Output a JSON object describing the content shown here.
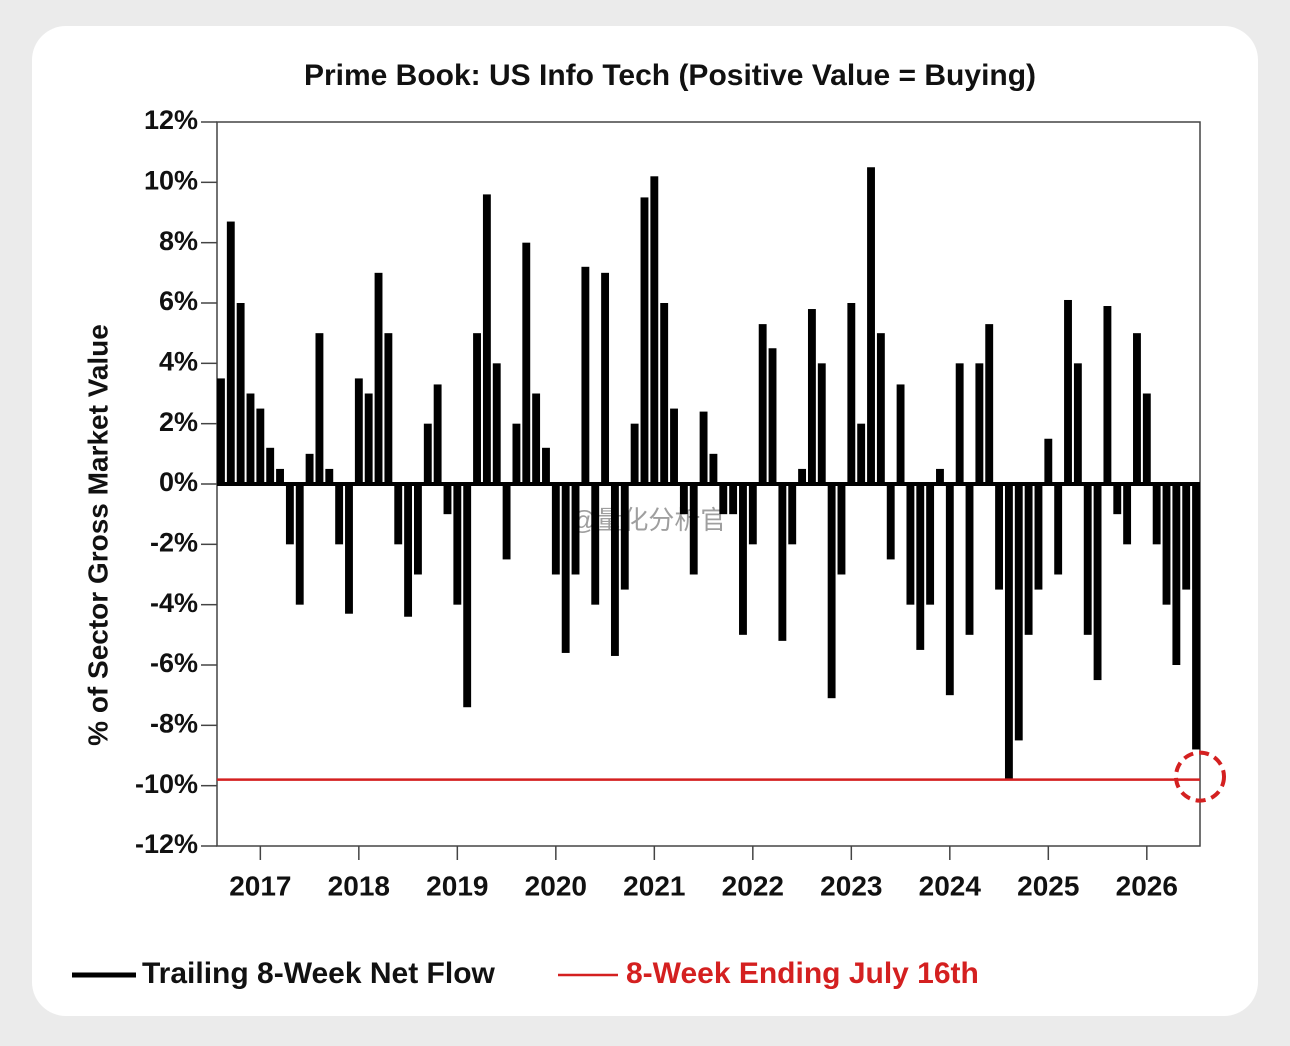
{
  "chart_data": {
    "type": "bar",
    "title": "Prime Book: US Info Tech (Positive Value = Buying)",
    "y_label": "% of Sector Gross Market Value",
    "watermark": "@量化分析官",
    "x": [
      2016.6,
      2016.7,
      2016.8,
      2016.9,
      2017.0,
      2017.1,
      2017.2,
      2017.3,
      2017.4,
      2017.5,
      2017.6,
      2017.7,
      2017.8,
      2017.9,
      2018.0,
      2018.1,
      2018.2,
      2018.3,
      2018.4,
      2018.5,
      2018.6,
      2018.7,
      2018.8,
      2018.9,
      2019.0,
      2019.1,
      2019.2,
      2019.3,
      2019.4,
      2019.5,
      2019.6,
      2019.7,
      2019.8,
      2019.9,
      2020.0,
      2020.1,
      2020.2,
      2020.3,
      2020.4,
      2020.5,
      2020.6,
      2020.7,
      2020.8,
      2020.9,
      2021.0,
      2021.1,
      2021.2,
      2021.3,
      2021.4,
      2021.5,
      2021.6,
      2021.7,
      2021.8,
      2021.9,
      2022.0,
      2022.1,
      2022.2,
      2022.3,
      2022.4,
      2022.5,
      2022.6,
      2022.7,
      2022.8,
      2022.9,
      2023.0,
      2023.1,
      2023.2,
      2023.3,
      2023.4,
      2023.5,
      2023.6,
      2023.7,
      2023.8,
      2023.9,
      2024.0,
      2024.1,
      2024.2,
      2024.3,
      2024.4,
      2024.5,
      2024.6,
      2024.7,
      2024.8,
      2024.9,
      2025.0,
      2025.1,
      2025.2,
      2025.3,
      2025.4,
      2025.5,
      2025.6,
      2025.7,
      2025.8,
      2025.9,
      2026.0,
      2026.1,
      2026.2,
      2026.3,
      2026.4,
      2026.5
    ],
    "series": [
      {
        "name": "Trailing 8-Week Net Flow",
        "color": "#000000",
        "values": [
          3.5,
          8.7,
          6,
          3,
          2.5,
          1.2,
          0.5,
          -2,
          -4,
          1,
          5,
          0.5,
          -2,
          -4.3,
          3.5,
          3,
          7,
          5,
          -2,
          -4.4,
          -3,
          2,
          3.3,
          -1,
          -4,
          -7.4,
          5,
          9.6,
          4,
          -2.5,
          2,
          8,
          3,
          1.2,
          -3,
          -5.6,
          -3,
          7.2,
          -4,
          7,
          -5.7,
          -3.5,
          2,
          9.5,
          10.2,
          6,
          2.5,
          -1,
          -3,
          2.4,
          1,
          -1,
          -1,
          -5,
          -2,
          5.3,
          4.5,
          -5.2,
          -2,
          0.5,
          5.8,
          4,
          -7.1,
          -3,
          6,
          2,
          10.5,
          5,
          -2.5,
          3.3,
          -4,
          -5.5,
          -4,
          0.5,
          -7,
          4,
          -5,
          4,
          5.3,
          -3.5,
          -9.8,
          -8.5,
          -5,
          -3.5,
          1.5,
          -3,
          6.1,
          4,
          -5,
          -6.5,
          5.9,
          -1,
          -2,
          5,
          3,
          -2,
          -4,
          -6,
          -3.5,
          -8.8
        ]
      }
    ],
    "reference_line": {
      "value": -9.8,
      "label": "8-Week Ending July 16th",
      "color": "#d42020"
    },
    "xlim": [
      2016.56,
      2026.54
    ],
    "xticks": [
      2017,
      2018,
      2019,
      2020,
      2021,
      2022,
      2023,
      2024,
      2025,
      2026
    ],
    "ylim": [
      -12,
      12
    ],
    "yticks": [
      {
        "value": -12,
        "label": "-12%"
      },
      {
        "value": -10,
        "label": "-10%"
      },
      {
        "value": -8,
        "label": "-8%"
      },
      {
        "value": -6,
        "label": "-6%"
      },
      {
        "value": -4,
        "label": "-4%"
      },
      {
        "value": -2,
        "label": "-2%"
      },
      {
        "value": 0,
        "label": "0%"
      },
      {
        "value": 2,
        "label": "2%"
      },
      {
        "value": 4,
        "label": "4%"
      },
      {
        "value": 6,
        "label": "6%"
      },
      {
        "value": 8,
        "label": "8%"
      },
      {
        "value": 10,
        "label": "10%"
      },
      {
        "value": 12,
        "label": "12%"
      }
    ]
  }
}
